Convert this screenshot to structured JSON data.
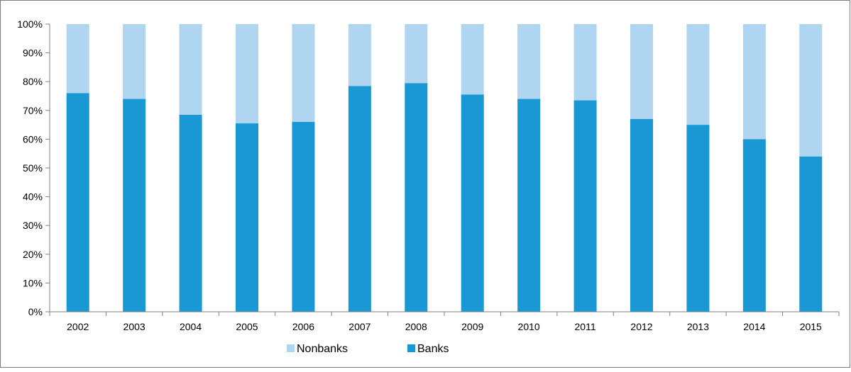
{
  "chart_data": {
    "type": "bar",
    "stacked": true,
    "percent_stacked": true,
    "categories": [
      "2002",
      "2003",
      "2004",
      "2005",
      "2006",
      "2007",
      "2008",
      "2009",
      "2010",
      "2011",
      "2012",
      "2013",
      "2014",
      "2015"
    ],
    "series": [
      {
        "name": "Banks",
        "color": "#1a98d4",
        "values": [
          76,
          74,
          68.5,
          65.5,
          66,
          78.5,
          79.5,
          75.5,
          74,
          73.5,
          67,
          65,
          60,
          54
        ]
      },
      {
        "name": "Nonbanks",
        "color": "#b0d5f0",
        "values": [
          24,
          26,
          31.5,
          34.5,
          34,
          21.5,
          20.5,
          24.5,
          26,
          26.5,
          33,
          35,
          40,
          46
        ]
      }
    ],
    "y_ticks": [
      "0%",
      "10%",
      "20%",
      "30%",
      "40%",
      "50%",
      "60%",
      "70%",
      "80%",
      "90%",
      "100%"
    ],
    "ylim": [
      0,
      100
    ],
    "grid": false,
    "legend": {
      "position": "bottom",
      "entries": [
        "Nonbanks",
        "Banks"
      ]
    },
    "title": "",
    "xlabel": "",
    "ylabel": ""
  }
}
